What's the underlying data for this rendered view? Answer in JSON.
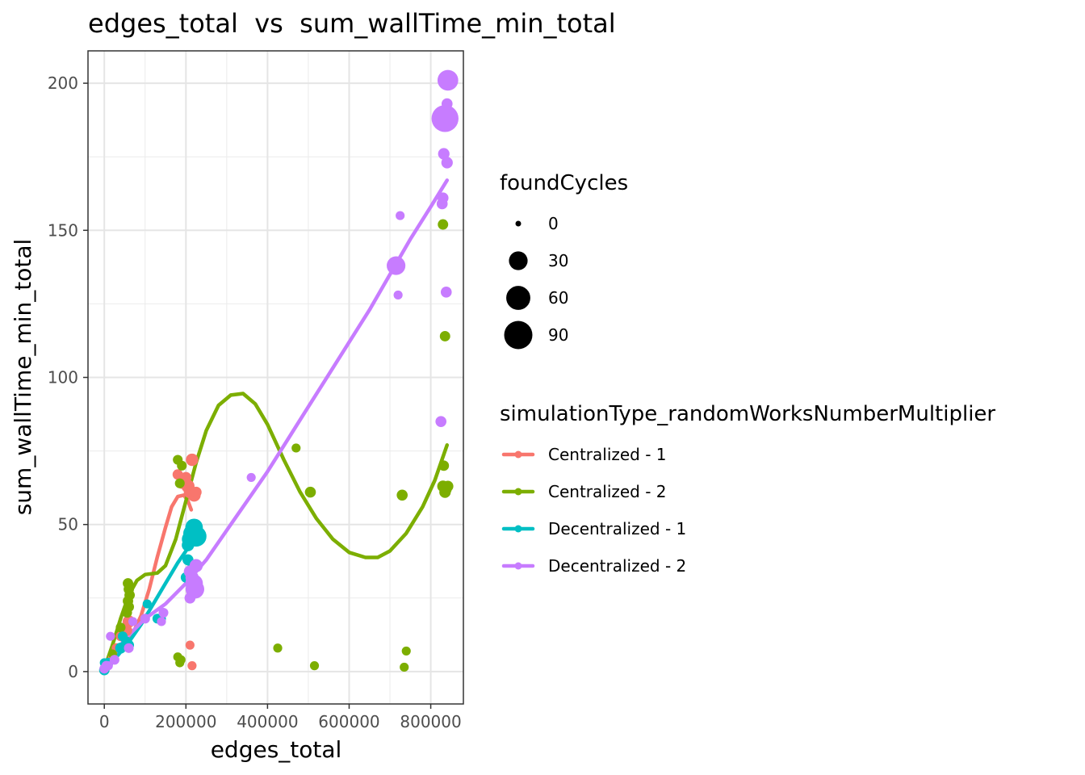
{
  "chart_data": {
    "type": "scatter",
    "title": "edges_total  vs  sum_wallTime_min_total",
    "xlabel": "edges_total",
    "ylabel": "sum_wallTime_min_total",
    "xlim": [
      -40000,
      880000
    ],
    "ylim": [
      -11,
      211
    ],
    "xticks": [
      0,
      200000,
      400000,
      600000,
      800000
    ],
    "yticks": [
      0,
      50,
      100,
      150,
      200
    ],
    "grid": true,
    "legend_position": "right",
    "size_legend": {
      "title": "foundCycles",
      "entries": [
        {
          "label": "0",
          "value": 0
        },
        {
          "label": "30",
          "value": 30
        },
        {
          "label": "60",
          "value": 60
        },
        {
          "label": "90",
          "value": 90
        }
      ]
    },
    "color_legend": {
      "title": "simulationType_randomWorksNumberMultiplier"
    },
    "series": [
      {
        "name": "Centralized - 1",
        "color": "#F8766D",
        "points": [
          [
            200000,
            66,
            5
          ],
          [
            205000,
            63,
            10
          ],
          [
            210000,
            61,
            8
          ],
          [
            215000,
            72,
            8
          ],
          [
            220000,
            60,
            10
          ],
          [
            225000,
            61,
            5
          ],
          [
            190000,
            64,
            5
          ],
          [
            180000,
            67,
            4
          ],
          [
            210000,
            9,
            2
          ],
          [
            215000,
            2,
            2
          ],
          [
            60000,
            17,
            8
          ],
          [
            55000,
            14,
            5
          ],
          [
            40000,
            12,
            3
          ],
          [
            20000,
            5,
            2
          ],
          [
            5000,
            2,
            2
          ],
          [
            0,
            1,
            2
          ],
          [
            30000,
            8,
            3
          ]
        ],
        "smooth": [
          [
            0,
            0.5
          ],
          [
            25000,
            4
          ],
          [
            50000,
            9
          ],
          [
            70000,
            13
          ],
          [
            90000,
            19
          ],
          [
            110000,
            28
          ],
          [
            130000,
            39
          ],
          [
            150000,
            49
          ],
          [
            165000,
            56
          ],
          [
            180000,
            59.5
          ],
          [
            195000,
            60
          ],
          [
            205000,
            58
          ],
          [
            213000,
            55
          ]
        ]
      },
      {
        "name": "Centralized - 2",
        "color": "#7CAE00",
        "points": [
          [
            58000,
            30,
            4
          ],
          [
            60000,
            28,
            4
          ],
          [
            62000,
            26,
            4
          ],
          [
            58000,
            24,
            4
          ],
          [
            60000,
            22,
            4
          ],
          [
            56000,
            20,
            3
          ],
          [
            40000,
            15,
            3
          ],
          [
            20000,
            6,
            2
          ],
          [
            180000,
            72,
            3
          ],
          [
            190000,
            70,
            3
          ],
          [
            185000,
            64,
            3
          ],
          [
            180000,
            5,
            2
          ],
          [
            185000,
            3,
            2
          ],
          [
            188000,
            4,
            2
          ],
          [
            425000,
            8,
            2
          ],
          [
            470000,
            76,
            2
          ],
          [
            505000,
            61,
            5
          ],
          [
            515000,
            2,
            2
          ],
          [
            730000,
            60,
            5
          ],
          [
            735000,
            1.5,
            2
          ],
          [
            740000,
            7,
            2
          ],
          [
            830000,
            152,
            4
          ],
          [
            832000,
            70,
            4
          ],
          [
            835000,
            114,
            4
          ],
          [
            830000,
            63,
            6
          ],
          [
            835000,
            61,
            6
          ],
          [
            838000,
            62,
            5
          ],
          [
            842000,
            63,
            5
          ]
        ],
        "smooth": [
          [
            0,
            1
          ],
          [
            20000,
            9
          ],
          [
            40000,
            18
          ],
          [
            60000,
            26
          ],
          [
            80000,
            31
          ],
          [
            100000,
            33
          ],
          [
            130000,
            33.5
          ],
          [
            150000,
            36
          ],
          [
            175000,
            45
          ],
          [
            200000,
            58
          ],
          [
            225000,
            71
          ],
          [
            250000,
            82
          ],
          [
            280000,
            90.5
          ],
          [
            310000,
            94
          ],
          [
            340000,
            94.5
          ],
          [
            370000,
            91
          ],
          [
            400000,
            84
          ],
          [
            440000,
            72
          ],
          [
            480000,
            61
          ],
          [
            520000,
            52
          ],
          [
            560000,
            45
          ],
          [
            600000,
            40.5
          ],
          [
            640000,
            38.8
          ],
          [
            670000,
            38.8
          ],
          [
            700000,
            41
          ],
          [
            740000,
            47
          ],
          [
            780000,
            56
          ],
          [
            810000,
            65
          ],
          [
            840000,
            77
          ]
        ]
      },
      {
        "name": "Decentralized - 1",
        "color": "#00BFC4",
        "points": [
          [
            0,
            0.5,
            4
          ],
          [
            5000,
            2,
            3
          ],
          [
            10000,
            3,
            3
          ],
          [
            0,
            3,
            2
          ],
          [
            40000,
            8,
            5
          ],
          [
            55000,
            10,
            5
          ],
          [
            60000,
            9,
            4
          ],
          [
            45000,
            12,
            3
          ],
          [
            105000,
            23,
            2
          ],
          [
            130000,
            18,
            3
          ],
          [
            140000,
            18,
            2
          ],
          [
            200000,
            32,
            4
          ],
          [
            205000,
            43,
            8
          ],
          [
            210000,
            45,
            20
          ],
          [
            215000,
            47,
            25
          ],
          [
            220000,
            49,
            25
          ],
          [
            225000,
            46,
            40
          ],
          [
            218000,
            36,
            6
          ],
          [
            205000,
            38,
            5
          ]
        ],
        "smooth": [
          [
            0,
            1
          ],
          [
            30000,
            5
          ],
          [
            60000,
            10
          ],
          [
            90000,
            16
          ],
          [
            120000,
            23
          ],
          [
            150000,
            30
          ],
          [
            180000,
            37
          ],
          [
            205000,
            42
          ],
          [
            222000,
            45
          ]
        ]
      },
      {
        "name": "Decentralized - 2",
        "color": "#C77CFF",
        "points": [
          [
            0,
            1,
            3
          ],
          [
            5000,
            2,
            3
          ],
          [
            10000,
            2,
            2
          ],
          [
            15000,
            12,
            2
          ],
          [
            25000,
            4,
            3
          ],
          [
            60000,
            8,
            3
          ],
          [
            70000,
            17,
            2
          ],
          [
            100000,
            18,
            3
          ],
          [
            145000,
            20,
            3
          ],
          [
            140000,
            17,
            2
          ],
          [
            210000,
            34,
            8
          ],
          [
            215000,
            32,
            10
          ],
          [
            220000,
            30,
            25
          ],
          [
            222000,
            28,
            30
          ],
          [
            225000,
            36,
            10
          ],
          [
            210000,
            25,
            5
          ],
          [
            360000,
            66,
            2
          ],
          [
            715000,
            138,
            30
          ],
          [
            720000,
            128,
            2
          ],
          [
            725000,
            155,
            2
          ],
          [
            825000,
            85,
            5
          ],
          [
            828000,
            159,
            5
          ],
          [
            830000,
            161,
            5
          ],
          [
            832000,
            176,
            6
          ],
          [
            838000,
            129,
            5
          ],
          [
            840000,
            173,
            6
          ],
          [
            835000,
            188,
            80
          ],
          [
            840000,
            193,
            5
          ],
          [
            842000,
            201,
            40
          ]
        ],
        "smooth": [
          [
            0,
            1
          ],
          [
            50000,
            11
          ],
          [
            100000,
            18
          ],
          [
            150000,
            23
          ],
          [
            200000,
            30
          ],
          [
            250000,
            38
          ],
          [
            300000,
            48
          ],
          [
            350000,
            58
          ],
          [
            400000,
            68
          ],
          [
            450000,
            79
          ],
          [
            500000,
            90
          ],
          [
            550000,
            101
          ],
          [
            600000,
            112
          ],
          [
            650000,
            123
          ],
          [
            700000,
            135
          ],
          [
            750000,
            147
          ],
          [
            800000,
            158
          ],
          [
            840000,
            167
          ]
        ]
      }
    ]
  }
}
